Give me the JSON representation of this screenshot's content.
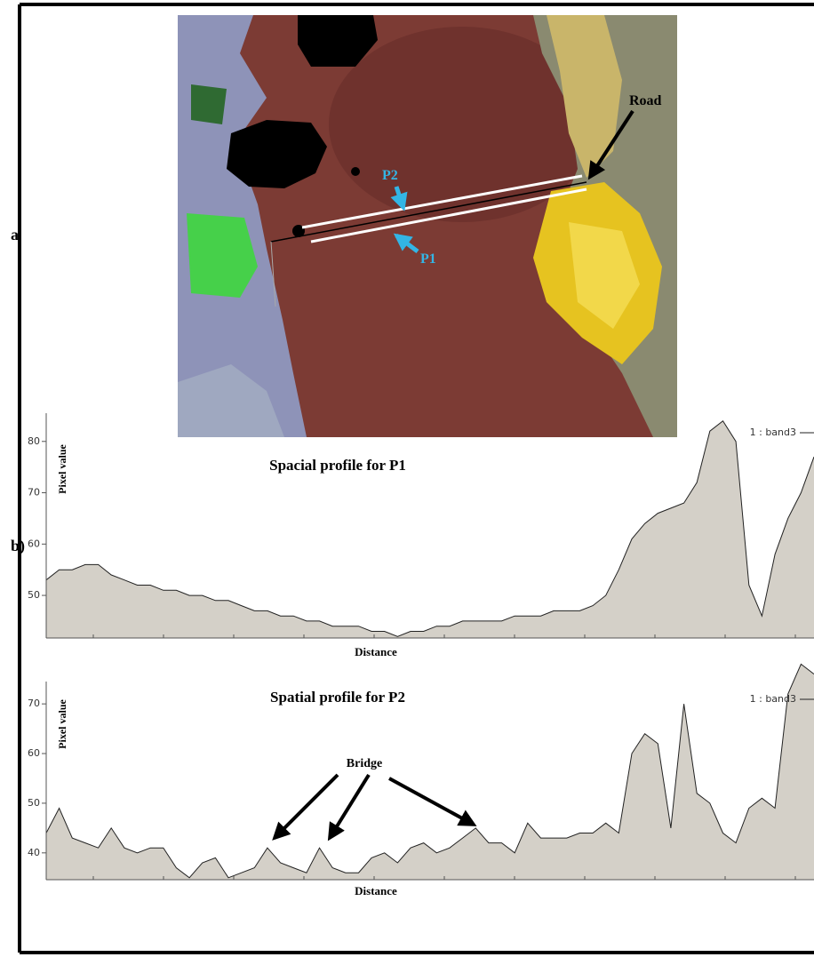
{
  "panel_labels": {
    "a": "a",
    "b": "b)"
  },
  "image_labels": {
    "road": "Road",
    "p2": "P2",
    "p1": "P1"
  },
  "chart_data": [
    {
      "type": "area",
      "title": "Spacial profile for P1",
      "y_label": "Pixel value",
      "x_label": "Distance",
      "ylim": [
        41.7,
        85.5
      ],
      "yticks": [
        50,
        60,
        70,
        80
      ],
      "legend": "top-right",
      "series": [
        {
          "name": "1 : band3",
          "color": "#d4d0c8",
          "values": [
            53,
            55,
            55,
            56,
            56,
            54,
            53,
            52,
            52,
            51,
            51,
            50,
            50,
            49,
            49,
            48,
            47,
            47,
            46,
            46,
            45,
            45,
            44,
            44,
            44,
            43,
            43,
            42,
            43,
            43,
            44,
            44,
            45,
            45,
            45,
            45,
            46,
            46,
            46,
            47,
            47,
            47,
            48,
            50,
            55,
            61,
            64,
            66,
            67,
            68,
            72,
            82,
            84,
            80,
            52,
            46,
            58,
            65,
            70,
            77
          ]
        }
      ]
    },
    {
      "type": "area",
      "title": "Spatial profile for P2",
      "y_label": "Pixel value",
      "x_label": "Distance",
      "ylim": [
        34.6,
        74.5
      ],
      "yticks": [
        40,
        50,
        60,
        70
      ],
      "legend": "top-right",
      "annotation": "Bridge",
      "series": [
        {
          "name": "1 : band3",
          "color": "#d4d0c8",
          "values": [
            44,
            49,
            43,
            42,
            41,
            45,
            41,
            40,
            41,
            41,
            37,
            35,
            38,
            39,
            35,
            36,
            37,
            41,
            38,
            37,
            36,
            41,
            37,
            36,
            36,
            39,
            40,
            38,
            41,
            42,
            40,
            41,
            43,
            45,
            42,
            42,
            40,
            46,
            43,
            43,
            43,
            44,
            44,
            46,
            44,
            60,
            64,
            62,
            45,
            70,
            52,
            50,
            44,
            42,
            49,
            51,
            49,
            72,
            78,
            76
          ]
        }
      ]
    }
  ]
}
